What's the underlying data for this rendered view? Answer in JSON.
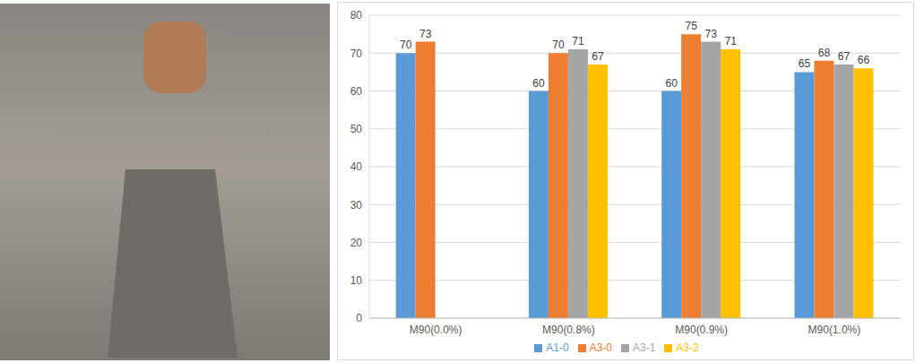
{
  "chart_data": {
    "type": "bar",
    "categories": [
      "M90(0.0%)",
      "M90(0.8%)",
      "M90(0.9%)",
      "M90(1.0%)"
    ],
    "series": [
      {
        "name": "A1-0",
        "color": "#5b9bd5",
        "values": [
          70,
          60,
          60,
          65
        ]
      },
      {
        "name": "A3-0",
        "color": "#ed7d31",
        "values": [
          73,
          70,
          75,
          68
        ]
      },
      {
        "name": "A3-1",
        "color": "#a5a5a5",
        "values": [
          0,
          71,
          73,
          67
        ]
      },
      {
        "name": "A3-2",
        "color": "#ffc000",
        "values": [
          0,
          67,
          71,
          66
        ]
      }
    ],
    "ylim": [
      0,
      80
    ],
    "yticks": [
      0,
      10,
      20,
      30,
      40,
      50,
      60,
      70,
      80
    ],
    "grid": true,
    "data_labels": true,
    "legend": "bottom"
  }
}
